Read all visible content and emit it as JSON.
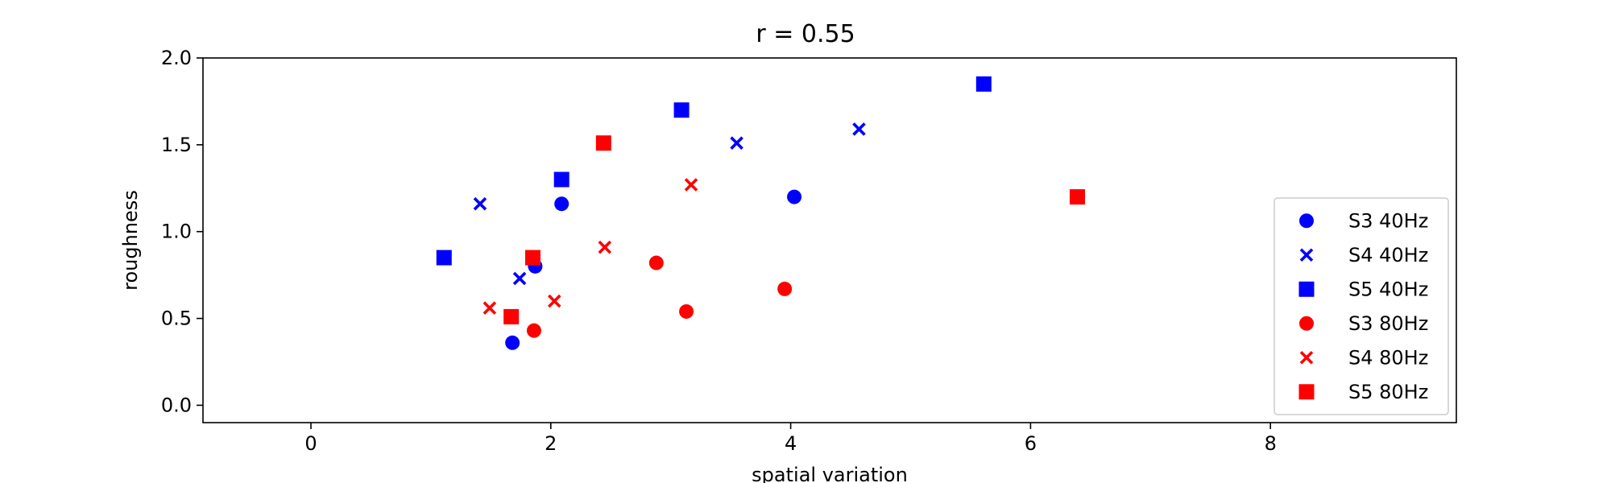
{
  "chart_data": {
    "type": "scatter",
    "title": "r = 0.55",
    "xlabel": "spatial variation",
    "ylabel": "roughness",
    "xlim": [
      -0.9,
      9.55
    ],
    "ylim": [
      -0.1,
      2.0
    ],
    "xticks": [
      0,
      2,
      4,
      6,
      8
    ],
    "yticks": [
      0.0,
      0.5,
      1.0,
      1.5,
      2.0
    ],
    "xtick_labels": [
      "0",
      "2",
      "4",
      "6",
      "8"
    ],
    "ytick_labels": [
      "0.0",
      "0.5",
      "1.0",
      "1.5",
      "2.0"
    ],
    "grid": false,
    "legend_position": "lower-right",
    "series": [
      {
        "name": "S3 40Hz",
        "color": "#0000ff",
        "marker": "circle",
        "points": [
          [
            1.68,
            0.36
          ],
          [
            1.87,
            0.8
          ],
          [
            2.09,
            1.16
          ],
          [
            4.03,
            1.2
          ]
        ]
      },
      {
        "name": "S4 40Hz",
        "color": "#0000ff",
        "marker": "x",
        "points": [
          [
            1.41,
            1.16
          ],
          [
            1.74,
            0.73
          ],
          [
            3.55,
            1.51
          ],
          [
            4.57,
            1.59
          ]
        ]
      },
      {
        "name": "S5 40Hz",
        "color": "#0000ff",
        "marker": "square",
        "points": [
          [
            1.11,
            0.85
          ],
          [
            2.09,
            1.3
          ],
          [
            3.09,
            1.7
          ],
          [
            5.61,
            1.85
          ]
        ]
      },
      {
        "name": "S3 80Hz",
        "color": "#ff0000",
        "marker": "circle",
        "points": [
          [
            1.86,
            0.43
          ],
          [
            2.88,
            0.82
          ],
          [
            3.13,
            0.54
          ],
          [
            3.95,
            0.67
          ]
        ]
      },
      {
        "name": "S4 80Hz",
        "color": "#ff0000",
        "marker": "x",
        "points": [
          [
            1.49,
            0.56
          ],
          [
            2.03,
            0.6
          ],
          [
            2.45,
            0.91
          ],
          [
            3.17,
            1.27
          ]
        ]
      },
      {
        "name": "S5 80Hz",
        "color": "#ff0000",
        "marker": "square",
        "points": [
          [
            1.67,
            0.51
          ],
          [
            1.85,
            0.85
          ],
          [
            2.44,
            1.51
          ],
          [
            6.39,
            1.2
          ]
        ]
      }
    ]
  }
}
